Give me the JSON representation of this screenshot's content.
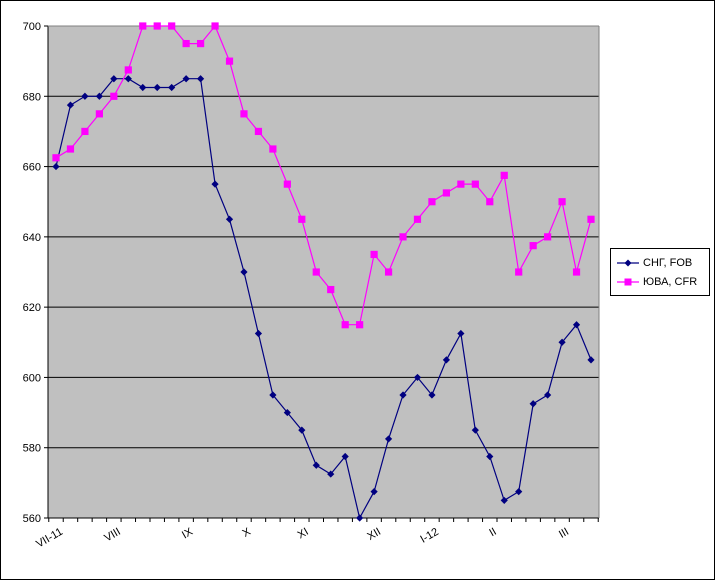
{
  "chart_data": {
    "type": "line",
    "title": "",
    "xlabel": "",
    "ylabel": "",
    "ylim": [
      560,
      700
    ],
    "yticks": [
      560,
      580,
      600,
      620,
      640,
      660,
      680,
      700
    ],
    "x_tick_labels": [
      "VII-11",
      "VIII",
      "IX",
      "X",
      "XI",
      "XII",
      "I-12",
      "II",
      "III"
    ],
    "grid": true,
    "legend_position": "right",
    "background": "#c0c0c0",
    "series": [
      {
        "name": "СНГ, FOB",
        "color": "#000080",
        "marker": "diamond",
        "values": [
          660,
          677.5,
          680,
          680,
          685,
          685,
          682.5,
          682.5,
          682.5,
          685,
          685,
          655,
          645,
          630,
          612.5,
          595,
          590,
          585,
          575,
          572.5,
          577.5,
          560,
          567.5,
          582.5,
          595,
          600,
          595,
          605,
          612.5,
          585,
          577.5,
          565,
          567.5,
          592.5,
          595,
          610,
          615,
          605
        ]
      },
      {
        "name": "ЮВА, CFR",
        "color": "#ff00ff",
        "marker": "square",
        "values": [
          662.5,
          665,
          670,
          675,
          680,
          687.5,
          700,
          700,
          700,
          695,
          695,
          700,
          690,
          675,
          670,
          665,
          655,
          645,
          630,
          625,
          615,
          615,
          635,
          630,
          640,
          645,
          650,
          652.5,
          655,
          655,
          650,
          657.5,
          630,
          637.5,
          640,
          650,
          630,
          645
        ]
      }
    ]
  }
}
